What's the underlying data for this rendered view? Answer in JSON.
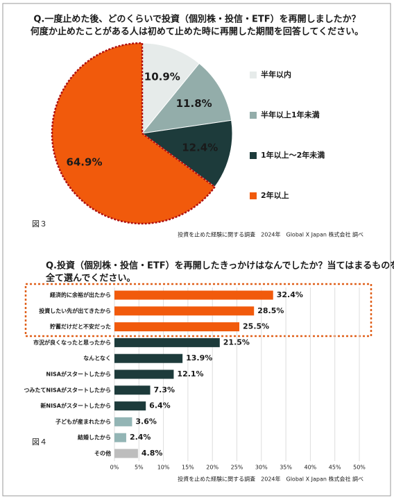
{
  "chart_data": [
    {
      "type": "pie",
      "title": [
        "Q.一度止めた後、どのくらいで投資（個別株・投信・ETF）を再開しましたか？",
        "何度か止めたことがある人は初めて止めた時に再開した期間を回答してください。"
      ],
      "categories": [
        "半年以内",
        "半年以上1年未満",
        "1年以上～2年未満",
        "2年以上"
      ],
      "values": [
        10.9,
        11.8,
        12.4,
        64.9
      ],
      "value_labels": [
        "10.9%",
        "11.8%",
        "12.4%",
        "64.9%"
      ],
      "colors": [
        "#e6ebea",
        "#93adaa",
        "#1d3b3b",
        "#f15a0c"
      ],
      "figure_label": "図３",
      "source": "投資を止めた経験に関する調査　2024年　Global X Japan 株式会社 調べ"
    },
    {
      "type": "bar",
      "title": [
        "Q.投資（個別株・投信・ETF）を再開したきっかけはなんでしたか？当てはまるものを",
        "全て選んでください。"
      ],
      "categories": [
        "経済的に余裕が出たから",
        "投資したい先が出てきたから",
        "貯蓄だけだと不安だった",
        "市況が良くなったと思ったから",
        "なんとなく",
        "NISAがスタートしたから",
        "つみたてNISAがスタートしたから",
        "新NISAがスタートしたから",
        "子どもが産まれたから",
        "結婚したから",
        "その他"
      ],
      "values": [
        32.4,
        28.5,
        25.5,
        21.5,
        13.9,
        12.1,
        7.3,
        6.4,
        3.6,
        2.4,
        4.8
      ],
      "value_labels": [
        "32.4%",
        "28.5%",
        "25.5%",
        "21.5%",
        "13.9%",
        "12.1%",
        "7.3%",
        "6.4%",
        "3.6%",
        "2.4%",
        "4.8%"
      ],
      "colors": [
        "#f15a0c",
        "#f15a0c",
        "#f15a0c",
        "#1d3b3b",
        "#1d3b3b",
        "#1d3b3b",
        "#1d3b3b",
        "#1d3b3b",
        "#93b5b5",
        "#93b5b5",
        "#bdbdbd"
      ],
      "xlim": [
        0,
        50
      ],
      "xticks": [
        {
          "value": 0,
          "label": "0%"
        },
        {
          "value": 5,
          "label": "5%"
        },
        {
          "value": 10,
          "label": "10%"
        },
        {
          "value": 15,
          "label": "15%"
        },
        {
          "value": 20,
          "label": "20%"
        },
        {
          "value": 25,
          "label": "25%"
        },
        {
          "value": 30,
          "label": "30%"
        },
        {
          "value": 35,
          "label": "35%"
        },
        {
          "value": 40,
          "label": "40%"
        },
        {
          "value": 45,
          "label": "45%"
        },
        {
          "value": 50,
          "label": "50%"
        }
      ],
      "grid": true,
      "figure_label": "図４",
      "source": "投資を止めた経験に関する調査　2024年　Global X Japan 株式会社 調べ"
    }
  ]
}
